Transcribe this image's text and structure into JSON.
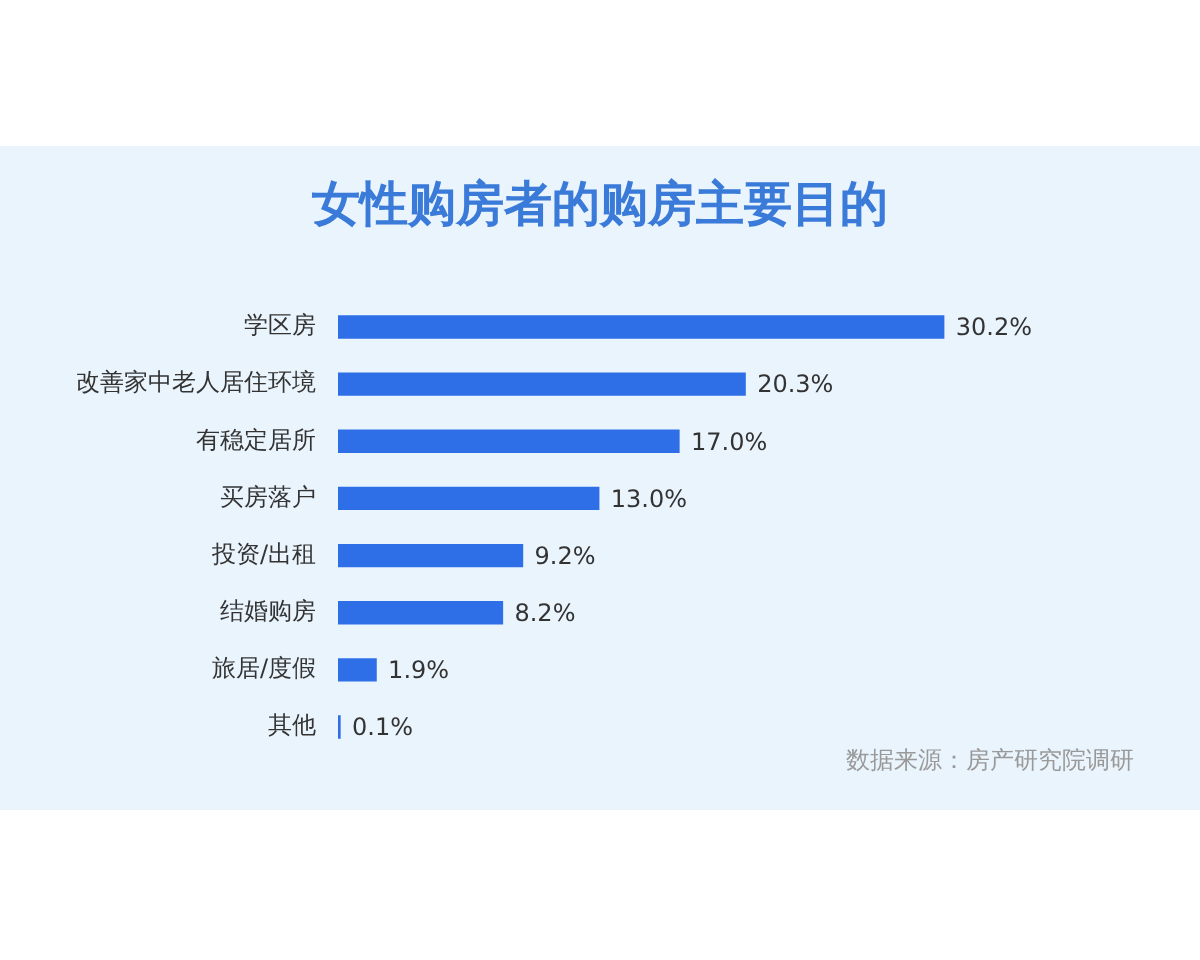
{
  "chart_data": {
    "type": "bar",
    "orientation": "horizontal",
    "title": "女性购房者的购房主要目的",
    "categories": [
      "学区房",
      "改善家中老人居住环境",
      "有稳定居所",
      "买房落户",
      "投资/出租",
      "结婚购房",
      "旅居/度假",
      "其他"
    ],
    "values": [
      30.2,
      20.3,
      17.0,
      13.0,
      9.2,
      8.2,
      1.9,
      0.1
    ],
    "value_labels": [
      "30.2%",
      "20.3%",
      "17.0%",
      "13.0%",
      "9.2%",
      "8.2%",
      "1.9%",
      "0.1%"
    ],
    "color": "#2e6fe8",
    "tick_labels": "y",
    "annotations": [
      "数据来源：房产研究院调研"
    ]
  }
}
